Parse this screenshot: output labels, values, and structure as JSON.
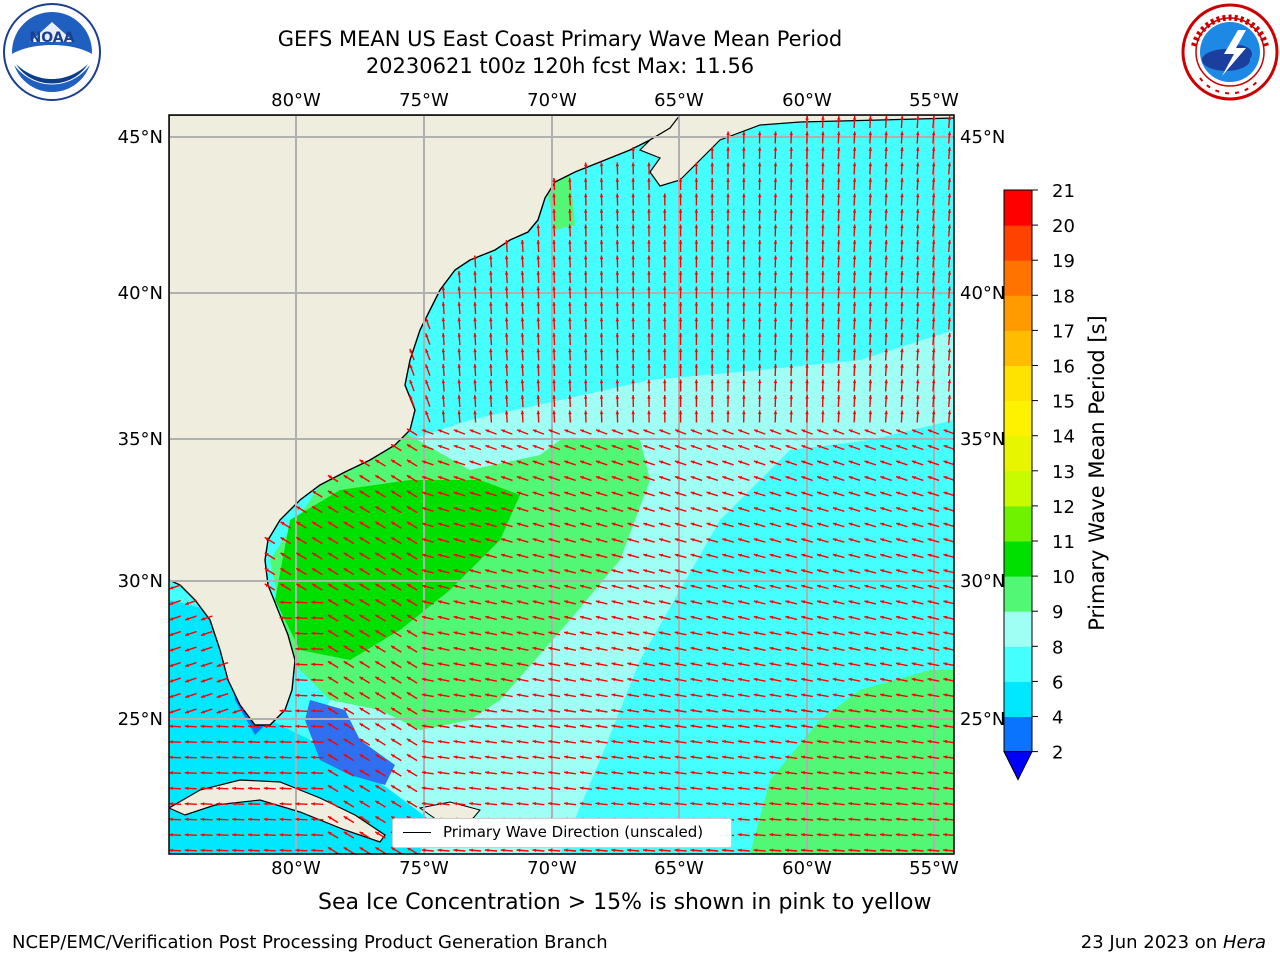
{
  "title": {
    "line1": "GEFS MEAN US East Coast Primary Wave Mean Period",
    "line2": "20230621 t00z 120h fcst   Max: 11.56"
  },
  "logos": {
    "left": {
      "text": "NOAA",
      "icon": "noaa-logo"
    },
    "right": {
      "icon": "nws-logo"
    }
  },
  "axes": {
    "lon_labels": [
      "80°W",
      "75°W",
      "70°W",
      "65°W",
      "60°W",
      "55°W"
    ],
    "lat_labels": [
      "45°N",
      "40°N",
      "35°N",
      "30°N",
      "25°N"
    ]
  },
  "colorbar": {
    "label": "Primary Wave Mean Period [s]",
    "ticks": [
      "2",
      "4",
      "6",
      "8",
      "9",
      "10",
      "11",
      "12",
      "13",
      "14",
      "15",
      "16",
      "17",
      "18",
      "19",
      "20",
      "21"
    ],
    "colors": [
      "#0a74ff",
      "#00e7ff",
      "#45ffff",
      "#9ffff5",
      "#52f776",
      "#00e000",
      "#6ef200",
      "#c8fa00",
      "#e7f500",
      "#fff200",
      "#ffe300",
      "#ffbc00",
      "#ff9a00",
      "#ff7400",
      "#ff4200",
      "#ff0000"
    ],
    "under_color": "#0000ff"
  },
  "legend": {
    "label": "Primary Wave Direction (unscaled)"
  },
  "colors": {
    "land": "#efedde",
    "grid": "#b0b0b0",
    "arrow": "#ff0000",
    "coast": "#000000"
  },
  "footer": {
    "sea_ice_note": "Sea Ice Concentration > 15% is shown in pink to yellow",
    "credit": "NCEP/EMC/Verification Post Processing Product Generation Branch",
    "date_prefix": "23 Jun 2023 on ",
    "host": "Hera"
  }
}
